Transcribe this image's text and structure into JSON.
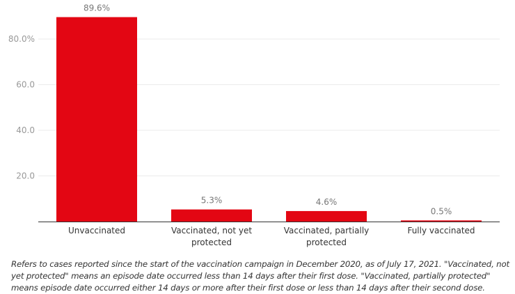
{
  "chart_data": {
    "type": "bar",
    "categories": [
      "Unvaccinated",
      "Vaccinated, not yet protected",
      "Vaccinated, partially protected",
      "Fully vaccinated"
    ],
    "category_lines": [
      [
        "Unvaccinated"
      ],
      [
        "Vaccinated, not yet",
        "protected"
      ],
      [
        "Vaccinated, partially",
        "protected"
      ],
      [
        "Fully vaccinated"
      ]
    ],
    "values": [
      89.6,
      5.3,
      4.6,
      0.5
    ],
    "data_labels": [
      "89.6%",
      "5.3%",
      "4.6%",
      "0.5%"
    ],
    "yticks": [
      20,
      40,
      60,
      80
    ],
    "ytick_labels": [
      "20.0",
      "40.0",
      "60.0",
      "80.0%"
    ],
    "ylim": [
      0,
      90
    ],
    "grid": true,
    "bar_color": "#e30613"
  },
  "footnote": "Refers to cases reported since the start of the vaccination campaign in December 2020, as of July 17, 2021. \"Vaccinated, not yet protected\" means an episode date occurred less than 14 days after their first dose. \"Vaccinated, partially protected\" means episode date occurred either 14 days or more after their first dose or less than 14 days after their second dose."
}
